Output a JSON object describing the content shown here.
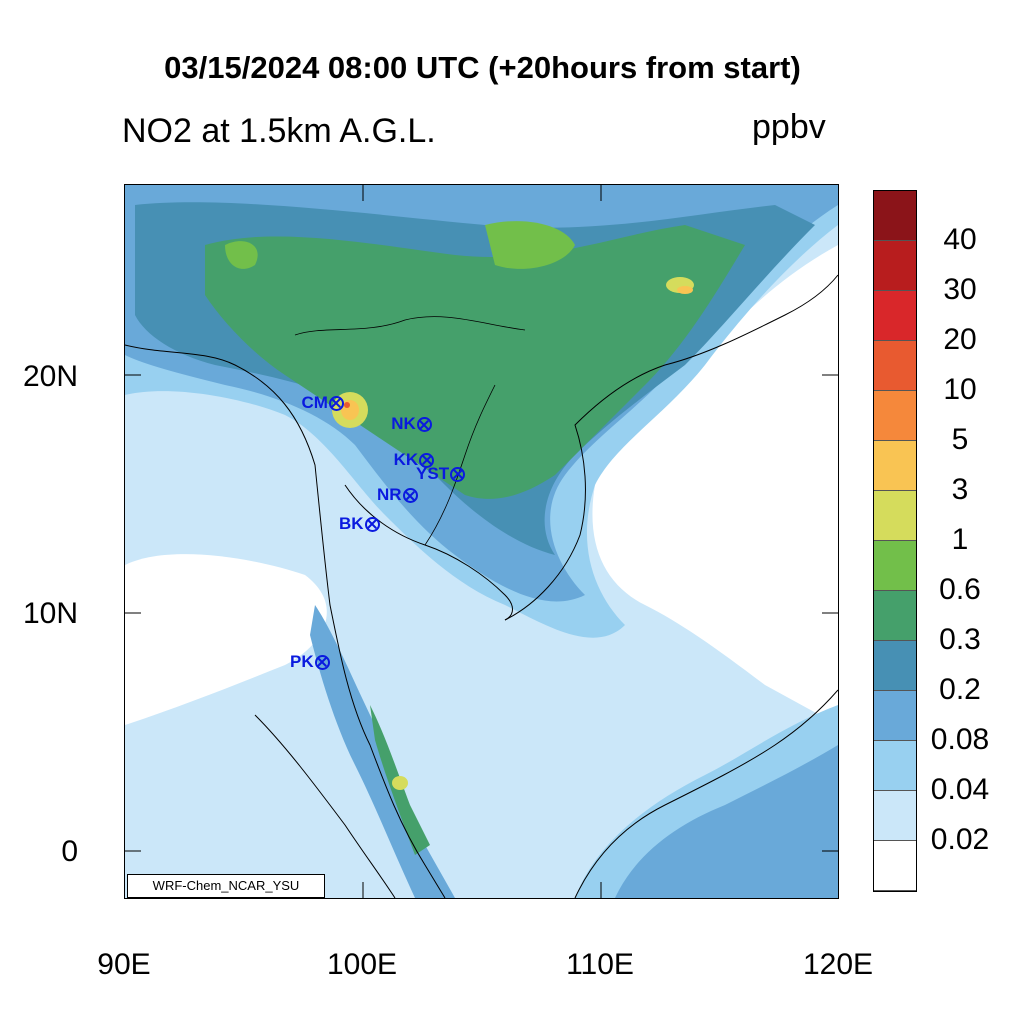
{
  "header": {
    "title": "03/15/2024 08:00 UTC (+20hours from start)",
    "subtitle": "NO2 at 1.5km A.G.L.",
    "units": "ppbv"
  },
  "map": {
    "lon_range": [
      90,
      120
    ],
    "lat_range": [
      -2,
      28
    ],
    "x_ticks": [
      "90E",
      "100E",
      "110E",
      "120E"
    ],
    "y_ticks": [
      "20N",
      "10N",
      "0"
    ],
    "credit": "WRF-Chem_NCAR_YSU"
  },
  "stations": [
    {
      "code": "CM",
      "lon": 99.0,
      "lat": 18.8
    },
    {
      "code": "NK",
      "lon": 102.7,
      "lat": 17.9
    },
    {
      "code": "KK",
      "lon": 102.8,
      "lat": 16.4
    },
    {
      "code": "YST",
      "lon": 104.1,
      "lat": 15.8
    },
    {
      "code": "NR",
      "lon": 102.1,
      "lat": 14.9
    },
    {
      "code": "BK",
      "lon": 100.5,
      "lat": 13.7
    },
    {
      "code": "PK",
      "lon": 98.4,
      "lat": 7.9
    }
  ],
  "colorbar": {
    "labels": [
      "40",
      "30",
      "20",
      "10",
      "5",
      "3",
      "1",
      "0.6",
      "0.3",
      "0.2",
      "0.08",
      "0.04",
      "0.02"
    ],
    "colors_top_to_bottom": [
      "#8b1419",
      "#b81d1e",
      "#d9272a",
      "#e85a30",
      "#f5883b",
      "#f9c453",
      "#d5dc5c",
      "#72bf4a",
      "#45a06b",
      "#4790b4",
      "#69a9d9",
      "#98d0f0",
      "#cbe7f9",
      "#ffffff"
    ]
  }
}
